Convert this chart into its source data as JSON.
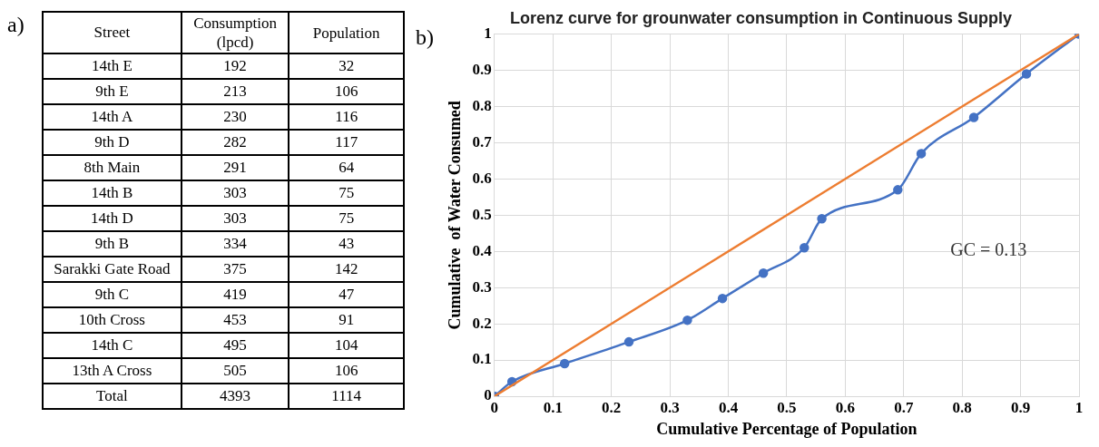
{
  "chart_data": [
    {
      "type": "other",
      "xlabel": "Street",
      "annotations": [
        "a)"
      ],
      "categories": [
        "14th E",
        "9th E",
        "14th A",
        "9th D",
        "8th Main",
        "14th B",
        "14th D",
        "9th B",
        "Sarakki Gate Road",
        "9th C",
        "10th Cross",
        "14th C",
        "13th A Cross",
        "Total"
      ],
      "series": [
        {
          "name": "Consumption (lpcd)",
          "values": [
            192,
            213,
            230,
            282,
            291,
            303,
            303,
            334,
            375,
            419,
            453,
            495,
            505,
            4393
          ]
        },
        {
          "name": "Population",
          "values": [
            32,
            106,
            116,
            117,
            64,
            75,
            75,
            43,
            142,
            47,
            91,
            104,
            106,
            1114
          ]
        }
      ],
      "data_labels": true
    },
    {
      "type": "line",
      "title": "Lorenz curve for grounwater consumption in Continuous Supply",
      "xlabel": "Cumulative Percentage of Population",
      "ylabel": "Cumulative  of Water Consumed",
      "annotations": [
        "b)",
        "GC = 0.13"
      ],
      "series": [
        {
          "color": "#4472c4",
          "marker": "circle",
          "x": [
            0,
            0.03,
            0.12,
            0.23,
            0.33,
            0.39,
            0.46,
            0.53,
            0.56,
            0.69,
            0.73,
            0.82,
            0.91,
            1
          ],
          "values": [
            0,
            0.04,
            0.09,
            0.15,
            0.21,
            0.27,
            0.34,
            0.41,
            0.49,
            0.57,
            0.67,
            0.77,
            0.89,
            1
          ]
        },
        {
          "color": "#ed7d31",
          "marker": "none",
          "x": [
            0,
            1
          ],
          "values": [
            0,
            1
          ]
        }
      ],
      "xlim": [
        0,
        1
      ],
      "ylim": [
        0,
        1
      ],
      "xticks": [
        0,
        0.1,
        0.2,
        0.3,
        0.4,
        0.5,
        0.6,
        0.7,
        0.8,
        0.9,
        1
      ],
      "yticks": [
        0,
        0.1,
        0.2,
        0.3,
        0.4,
        0.5,
        0.6,
        0.7,
        0.8,
        0.9,
        1
      ],
      "grid": true,
      "legend": false
    }
  ]
}
